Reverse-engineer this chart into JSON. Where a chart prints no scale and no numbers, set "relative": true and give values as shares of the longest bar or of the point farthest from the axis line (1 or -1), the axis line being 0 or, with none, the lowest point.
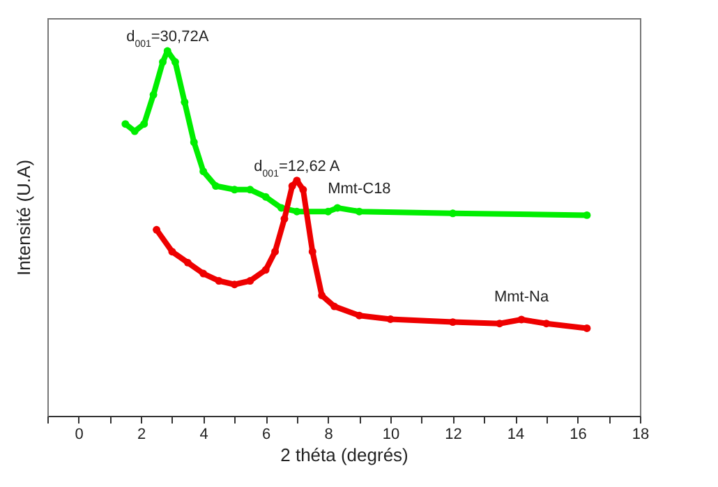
{
  "chart_data": {
    "type": "line",
    "relative": true,
    "xlabel": "2 théta (degrés)",
    "ylabel": "Intensité (U.A)",
    "xlim": [
      -1,
      18
    ],
    "xticks": [
      {
        "value": -1,
        "label": null
      },
      0,
      {
        "value": 1,
        "label": null
      },
      2,
      {
        "value": 3,
        "label": null
      },
      4,
      {
        "value": 5,
        "label": null
      },
      6,
      {
        "value": 7,
        "label": null
      },
      8,
      {
        "value": 9,
        "label": null
      },
      10,
      {
        "value": 11,
        "label": null
      },
      12,
      {
        "value": 13,
        "label": null
      },
      14,
      {
        "value": 15,
        "label": null
      },
      16,
      {
        "value": 17,
        "label": null
      },
      18
    ],
    "legend": false,
    "grid": false,
    "marker": "circle",
    "series": [
      {
        "name": "Mmt-C18",
        "color": "#00ee00",
        "x": [
          1.5,
          1.8,
          2.1,
          2.4,
          2.7,
          2.85,
          3.1,
          3.4,
          3.7,
          4.0,
          4.4,
          5.0,
          5.5,
          6.0,
          6.5,
          7.0,
          8.0,
          8.3,
          9.0,
          12.0,
          16.3
        ],
        "values": [
          0.8,
          0.78,
          0.8,
          0.88,
          0.97,
          1.0,
          0.97,
          0.86,
          0.75,
          0.67,
          0.63,
          0.62,
          0.62,
          0.6,
          0.57,
          0.56,
          0.56,
          0.57,
          0.56,
          0.555,
          0.55
        ]
      },
      {
        "name": "Mmt-Na",
        "color": "#ee0000",
        "x": [
          2.5,
          3.0,
          3.5,
          4.0,
          4.5,
          5.0,
          5.5,
          6.0,
          6.3,
          6.6,
          6.85,
          7.0,
          7.2,
          7.5,
          7.8,
          8.2,
          9.0,
          10.0,
          12.0,
          13.5,
          14.2,
          15.0,
          16.3
        ],
        "values": [
          0.51,
          0.45,
          0.42,
          0.39,
          0.37,
          0.36,
          0.37,
          0.4,
          0.45,
          0.54,
          0.63,
          0.645,
          0.62,
          0.45,
          0.33,
          0.3,
          0.275,
          0.265,
          0.257,
          0.253,
          0.264,
          0.253,
          0.24
        ]
      }
    ],
    "annotations": [
      {
        "text": "d$_{001}$=30,72A",
        "x": 2.85,
        "y": 1.0
      },
      {
        "text": "d$_{001}$=12,62 A",
        "x": 7.0,
        "y": 0.645
      }
    ]
  }
}
